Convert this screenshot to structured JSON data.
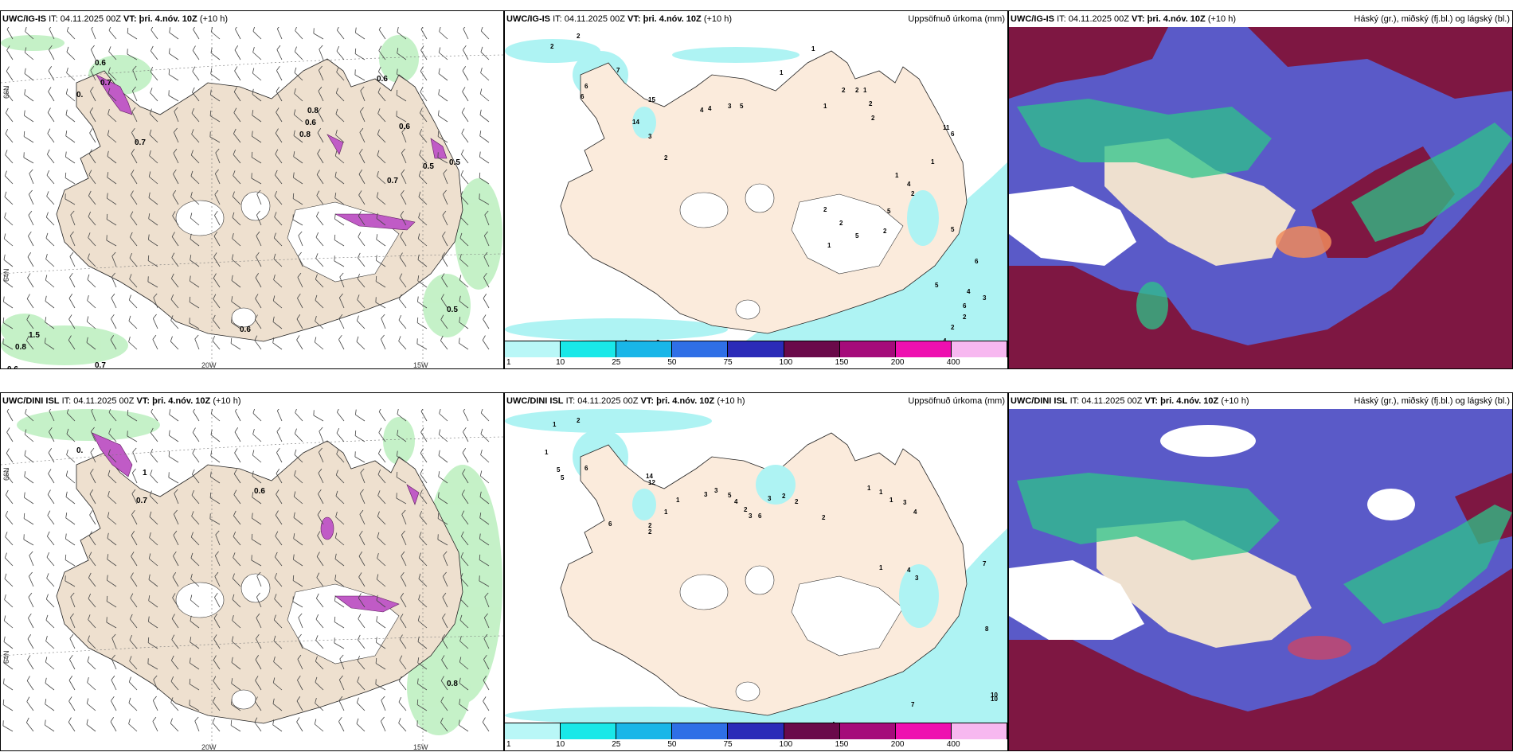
{
  "panels": {
    "top_left": {
      "model": "UWC/IG-IS",
      "it": "IT: 04.11.2025 00Z",
      "vt_label": "VT:",
      "vt": "þri. 4.nóv. 10Z",
      "lead": "(+10 h)"
    },
    "top_mid": {
      "model": "UWC/IG-IS",
      "it": "IT: 04.11.2025 00Z",
      "vt_label": "VT:",
      "vt": "þri. 4.nóv. 10Z",
      "lead": "(+10 h)",
      "right": "Uppsöfnuð úrkoma (mm)"
    },
    "top_right": {
      "model": "UWC/IG-IS",
      "it": "IT: 04.11.2025 00Z",
      "vt_label": "VT:",
      "vt": "þri. 4.nóv. 10Z",
      "lead": "(+10 h)",
      "right": "Háský (gr.), miðský (fj.bl.) og lágský (bl.)"
    },
    "bot_left": {
      "model": "UWC/DINI ISL",
      "it": "IT: 04.11.2025 00Z",
      "vt_label": "VT:",
      "vt": "þri. 4.nóv. 10Z",
      "lead": "(+10 h)"
    },
    "bot_mid": {
      "model": "UWC/DINI ISL",
      "it": "IT: 04.11.2025 00Z",
      "vt_label": "VT:",
      "vt": "þri. 4.nóv. 10Z",
      "lead": "(+10 h)",
      "right": "Uppsöfnuð úrkoma (mm)"
    },
    "bot_right": {
      "model": "UWC/DINI ISL",
      "it": "IT: 04.11.2025 00Z",
      "vt_label": "VT:",
      "vt": "þri. 4.nóv. 10Z",
      "lead": "(+10 h)",
      "right": "Háský (gr.), miðský (fj.bl.) og lágský (bl.)"
    }
  },
  "axes": {
    "lat66": "66N",
    "lat64": "64N",
    "lon20": "20W",
    "lon15": "15W"
  },
  "colorbar": {
    "ticks": [
      "1",
      "10",
      "25",
      "50",
      "75",
      "100",
      "150",
      "200",
      "400"
    ],
    "colors": [
      "#b9f7f7",
      "#19e8e8",
      "#19b6e8",
      "#2f6fe6",
      "#2b2bb8",
      "#6a0a4a",
      "#a50b7a",
      "#ee10b0",
      "#f7b8f0"
    ]
  },
  "top_left_labels": [
    "0.6",
    "0.7",
    "0.",
    "0.7",
    "0.6",
    "0.8",
    "0.6",
    "0.8",
    "0.6",
    "0.5",
    "0.5",
    "0.7",
    "0.5",
    "1.5",
    "0.8",
    "0.6",
    "0.8",
    "0.7",
    "0.6"
  ],
  "top_mid_labels": [
    "2",
    "2",
    "7",
    "6",
    "6",
    "15",
    "14",
    "3",
    "2",
    "4",
    "4",
    "3",
    "5",
    "1",
    "1",
    "2",
    "2",
    "1",
    "1",
    "2",
    "2",
    "11",
    "6",
    "1",
    "1",
    "4",
    "2",
    "2",
    "2",
    "5",
    "2",
    "1",
    "5",
    "5",
    "6",
    "4",
    "6",
    "5",
    "3",
    "2",
    "2",
    "4",
    "6",
    "2",
    "4",
    "3",
    "1"
  ],
  "bot_left_labels": [
    "0.",
    "0.7",
    "0.6",
    "0.8",
    "1"
  ],
  "bot_mid_labels": [
    "1",
    "2",
    "1",
    "5",
    "5",
    "6",
    "14",
    "12",
    "6",
    "2",
    "2",
    "1",
    "1",
    "3",
    "3",
    "5",
    "4",
    "2",
    "3",
    "6",
    "3",
    "2",
    "2",
    "2",
    "1",
    "1",
    "1",
    "3",
    "4",
    "4",
    "3",
    "1",
    "7",
    "8",
    "10",
    "10",
    "7",
    "8",
    "5",
    "4",
    "3",
    "2",
    "3",
    "1",
    "2",
    "3",
    "3",
    "4"
  ],
  "colors": {
    "land": "#eee0cf",
    "precip_light": "#aef3f3",
    "cloud_dark": "#7e1742",
    "cloud_mid": "#5a5ac8",
    "cloud_green": "#2ec48a"
  }
}
